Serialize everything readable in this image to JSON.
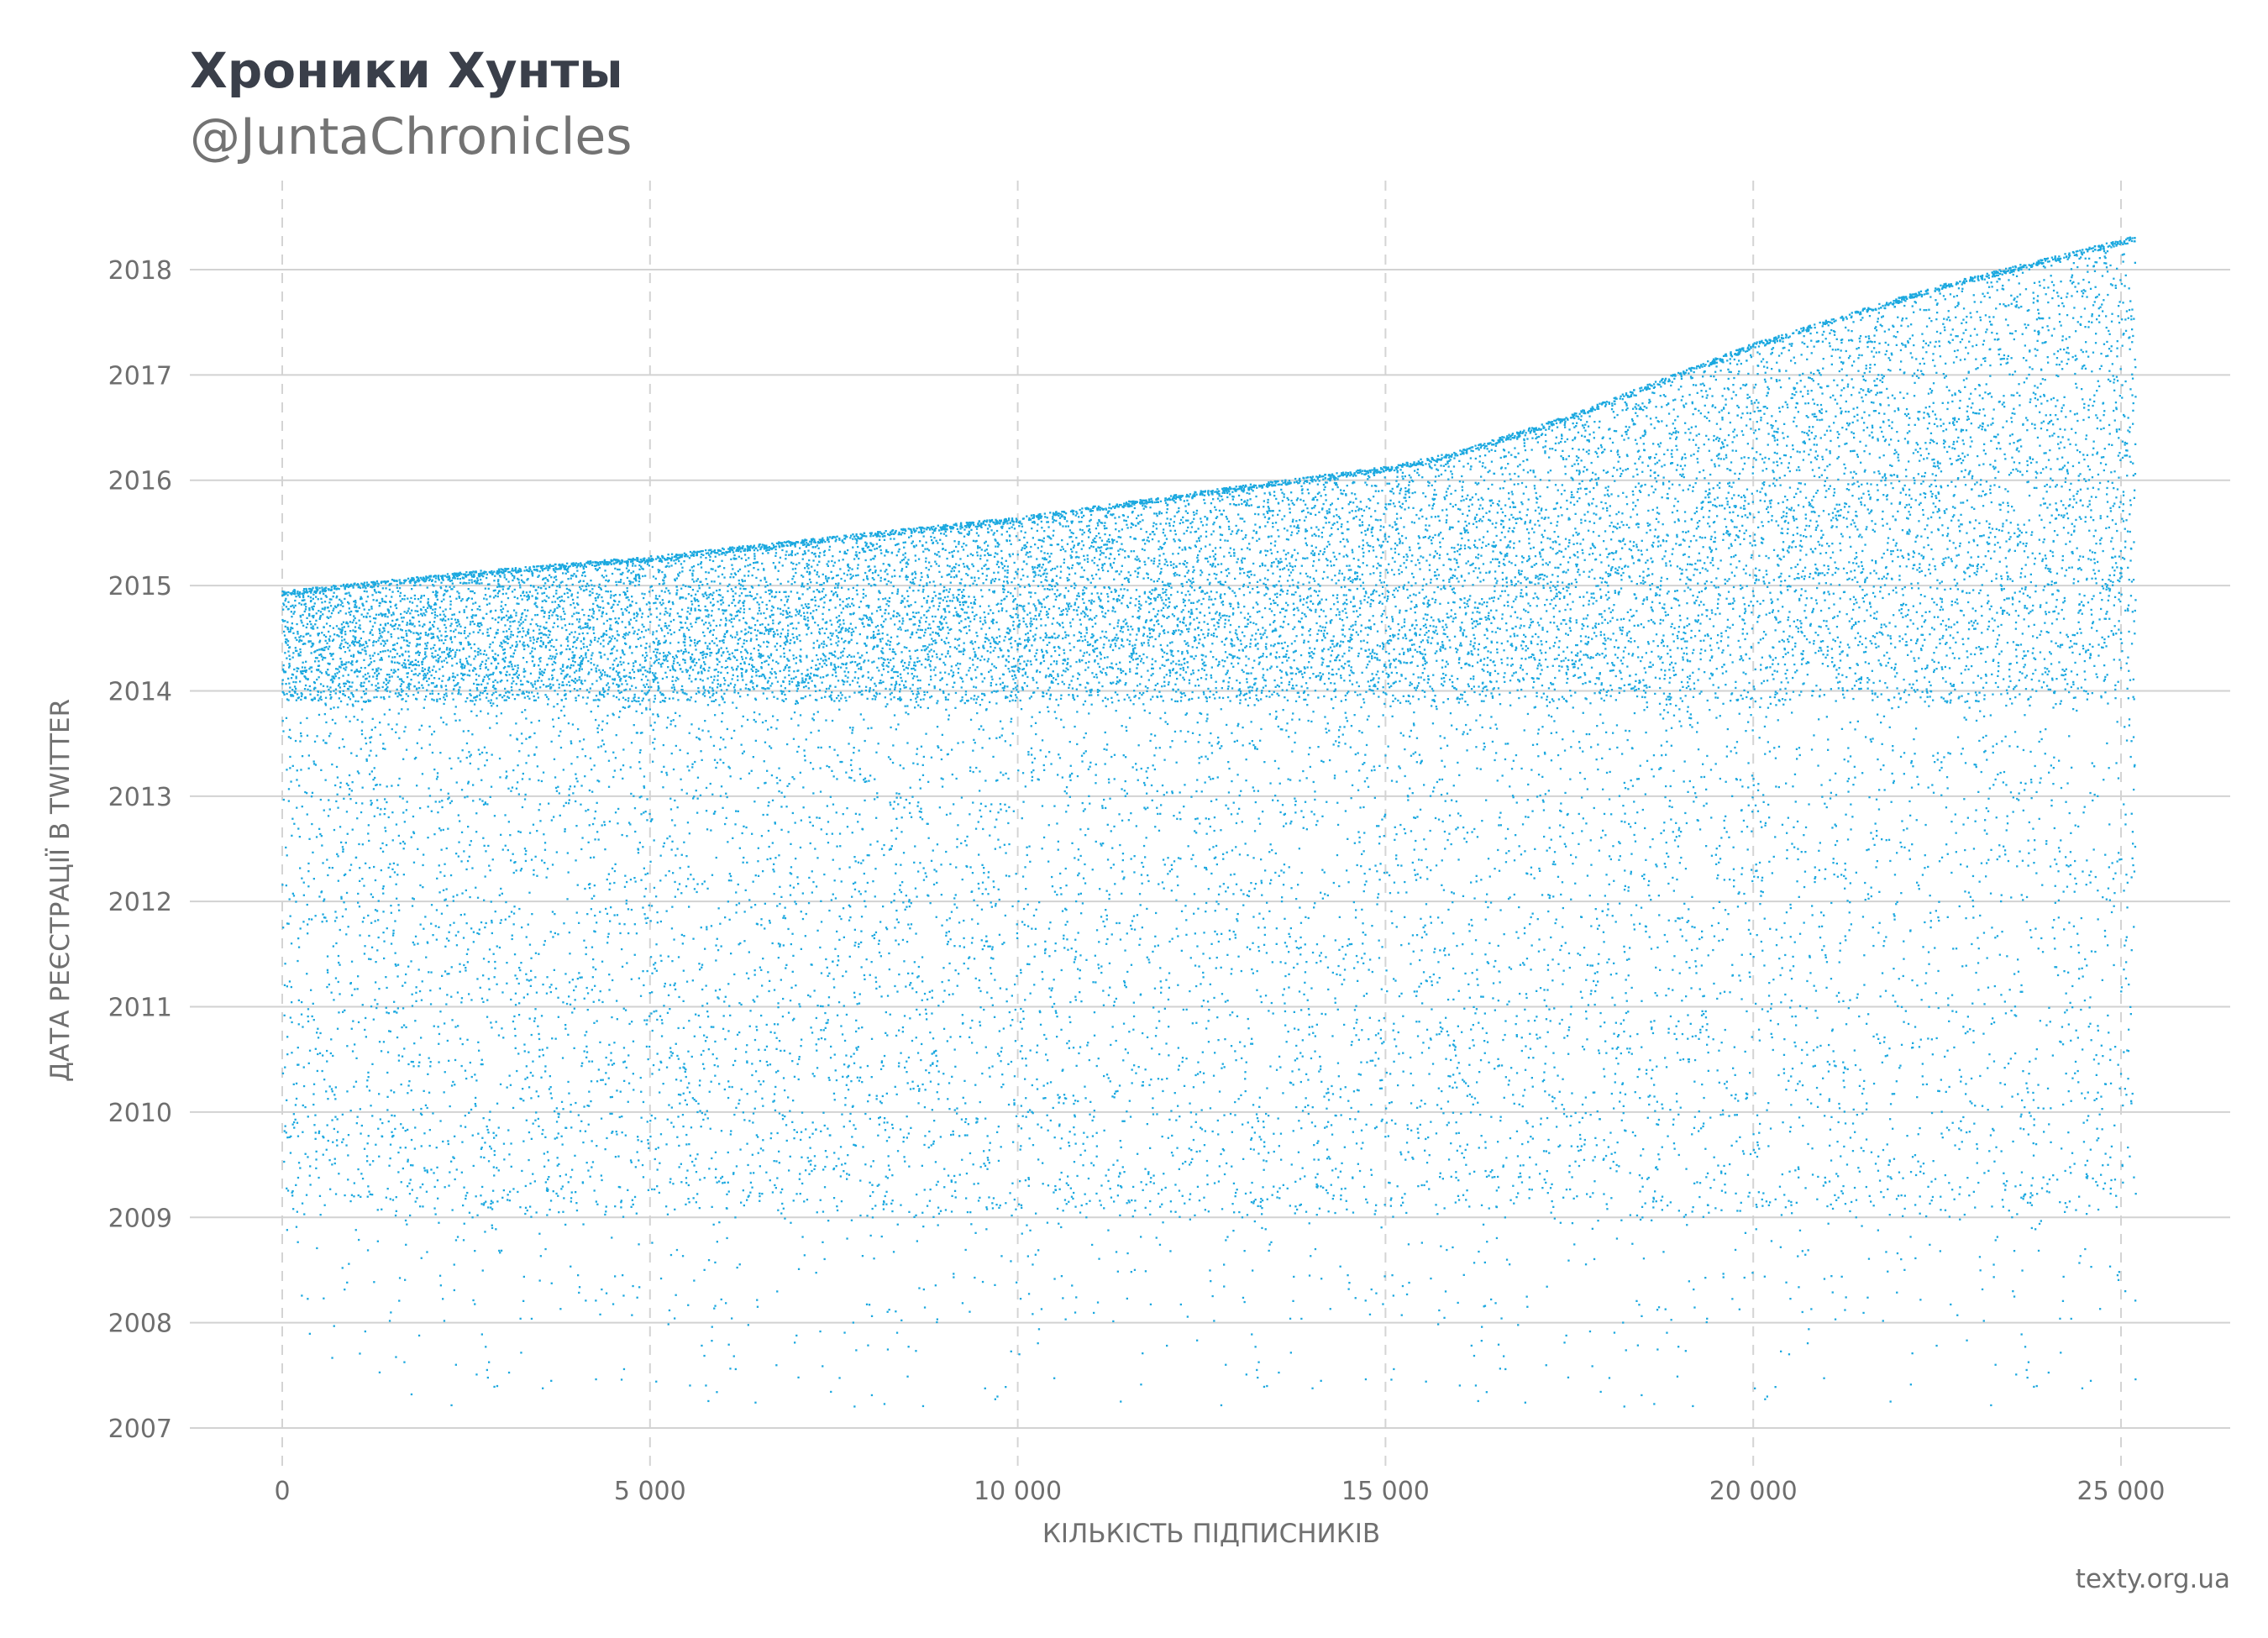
{
  "chart_data": {
    "type": "scatter",
    "title": "Хроники Хунты",
    "subtitle": "@JuntaChronicles",
    "xlabel": "КІЛЬКІСТЬ ПІДПИСНИКІВ",
    "ylabel": "ДАТА РЕЄСТРАЦІЇ В TWITTER",
    "source": "texty.org.ua",
    "xlim": [
      -1250,
      26500
    ],
    "ylim": [
      2006.6,
      2018.9
    ],
    "x_ticks": [
      0,
      5000,
      10000,
      15000,
      20000,
      25000
    ],
    "x_tick_labels": [
      "0",
      "5 000",
      "10 000",
      "15 000",
      "20 000",
      "25 000"
    ],
    "y_ticks": [
      2007,
      2008,
      2009,
      2010,
      2011,
      2012,
      2013,
      2014,
      2015,
      2016,
      2017,
      2018
    ],
    "y_tick_labels": [
      "2007",
      "2008",
      "2009",
      "2010",
      "2011",
      "2012",
      "2013",
      "2014",
      "2015",
      "2016",
      "2017",
      "2018"
    ],
    "grid": {
      "horizontal": "solid",
      "vertical": "dashed"
    },
    "point_color": "#1ba8df",
    "point_count": 25200,
    "upper_envelope": {
      "x": [
        0,
        2500,
        5000,
        7500,
        10000,
        12500,
        15000,
        16000,
        17500,
        20000,
        22500,
        25200
      ],
      "y": [
        2014.95,
        2015.13,
        2015.28,
        2015.47,
        2015.65,
        2015.9,
        2016.13,
        2016.28,
        2016.62,
        2017.3,
        2017.85,
        2018.32
      ]
    },
    "dense_band": [
      2013.9,
      2015.0
    ]
  }
}
